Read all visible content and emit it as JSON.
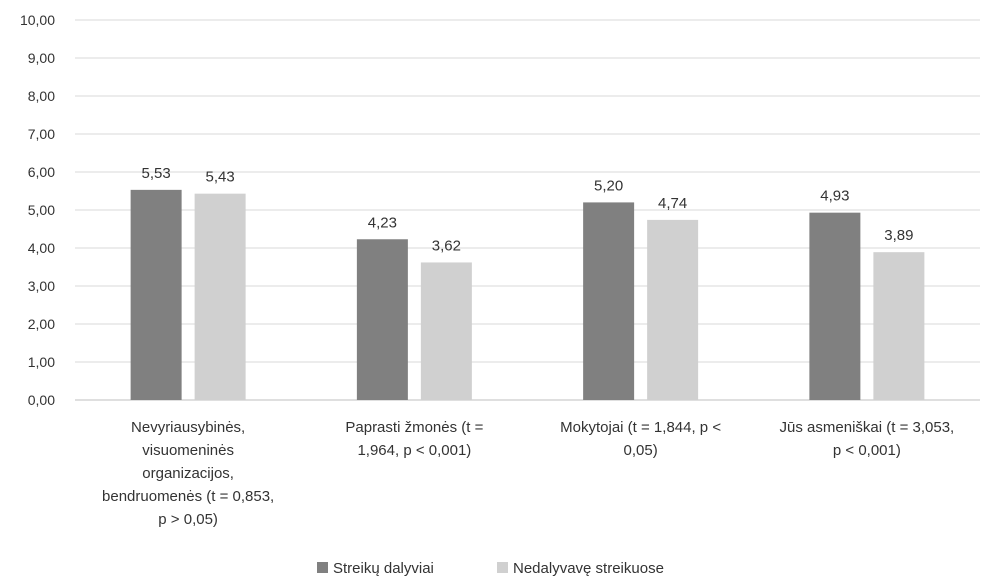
{
  "chart_data": {
    "type": "bar",
    "categories": [
      [
        "Nevyriausybinės,",
        "visuomeninės",
        "organizacijos,",
        "bendruomenės (t = 0,853,",
        "p > 0,05)"
      ],
      [
        "Paprasti žmonės (t =",
        "1,964, p < 0,001)"
      ],
      [
        "Mokytojai (t = 1,844, p <",
        "0,05)"
      ],
      [
        "Jūs asmeniškai (t = 3,053,",
        "p < 0,001)"
      ]
    ],
    "series": [
      {
        "name": "Streikų dalyviai",
        "color": "#808080",
        "values": [
          5.53,
          4.23,
          5.2,
          4.93
        ],
        "labels": [
          "5,53",
          "4,23",
          "5,20",
          "4,93"
        ]
      },
      {
        "name": "Nedalyvavę streikuose",
        "color": "#d0d0d0",
        "values": [
          5.43,
          3.62,
          4.74,
          3.89
        ],
        "labels": [
          "5,43",
          "3,62",
          "4,74",
          "3,89"
        ]
      }
    ],
    "yticks": [
      "0,00",
      "1,00",
      "2,00",
      "3,00",
      "4,00",
      "5,00",
      "6,00",
      "7,00",
      "8,00",
      "9,00",
      "10,00"
    ],
    "ylim": [
      0,
      10
    ],
    "grid": true,
    "legend": "bottom-center"
  }
}
